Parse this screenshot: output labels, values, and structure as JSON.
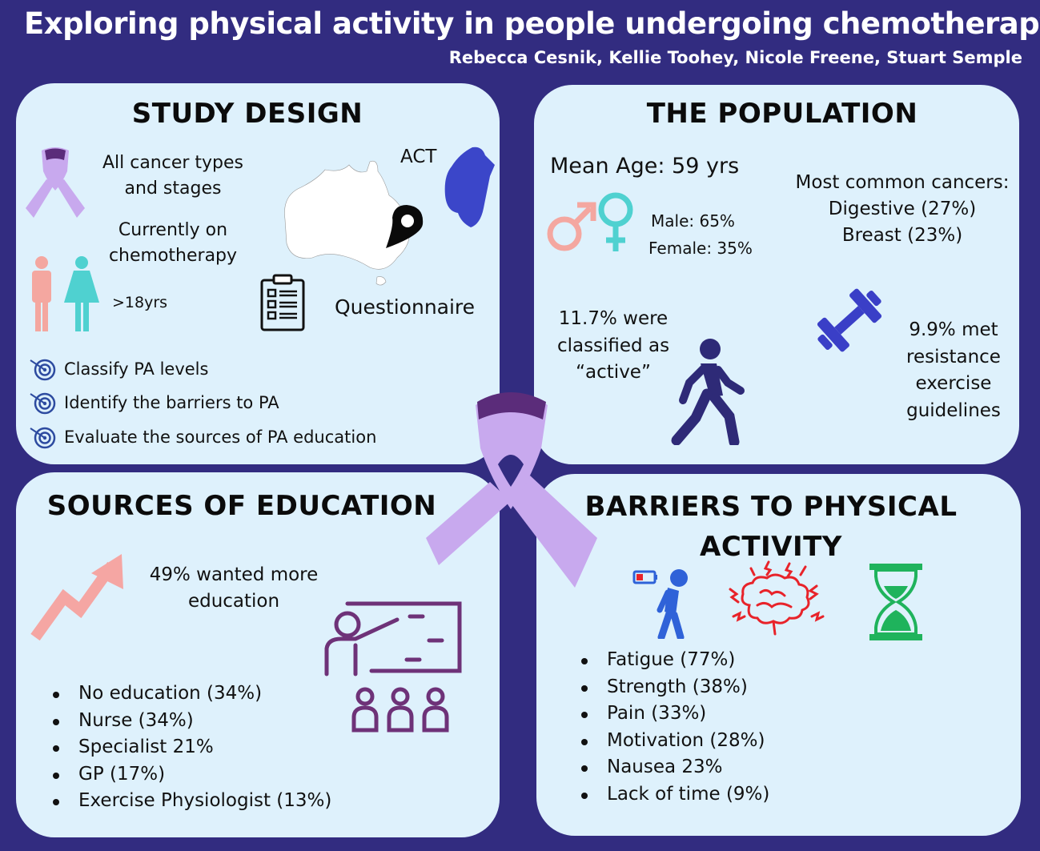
{
  "header": {
    "title": "Exploring physical activity in people undergoing chemotherapy",
    "authors": "Rebecca Cesnik, Kellie Toohey, Nicole Freene, Stuart Semple"
  },
  "study_design": {
    "title": "STUDY DESIGN",
    "cancer_types": "All cancer types and stages",
    "chemo": "Currently on chemotherapy",
    "age": ">18yrs",
    "region": "ACT",
    "method": "Questionnaire",
    "aims": [
      "Classify PA levels",
      "Identify the barriers to PA",
      "Evaluate the sources of PA education"
    ]
  },
  "population": {
    "title": "THE POPULATION",
    "mean_age": "Mean Age: 59 yrs",
    "male": "Male: 65%",
    "female": "Female: 35%",
    "cancers_heading": "Most common cancers:",
    "cancers": [
      "Digestive (27%)",
      "Breast (23%)"
    ],
    "active": "11.7% were classified as “active”",
    "resistance": "9.9% met resistance exercise guidelines"
  },
  "education": {
    "title": "SOURCES OF EDUCATION",
    "wanted": "49% wanted more education",
    "sources": [
      "No education (34%)",
      "Nurse (34%)",
      "Specialist 21%",
      "GP (17%)",
      "Exercise Physiologist (13%)"
    ]
  },
  "barriers": {
    "title": "BARRIERS TO PHYSICAL ACTIVITY",
    "items": [
      "Fatigue (77%)",
      "Strength (38%)",
      "Pain (33%)",
      "Motivation (28%)",
      "Nausea 23%",
      "Lack of time (9%)"
    ]
  },
  "colors": {
    "background": "#322c80",
    "panel": "#def1fc",
    "ribbon": "#c8a9ee",
    "ribbon_dark": "#5b2c7a",
    "male_pink": "#f4a7a0",
    "female_teal": "#4fd1d0",
    "dumbbell_blue": "#3a3fc7",
    "walker_navy": "#2e2a77",
    "brain_red": "#e8232a",
    "hourglass_green": "#1fb35c",
    "teacher_purple": "#6e3278",
    "arrow_pink": "#f5a6a3"
  },
  "icons": [
    "ribbon-icon",
    "australia-map-icon",
    "act-map-icon",
    "location-pin-icon",
    "person-icon",
    "clipboard-icon",
    "target-icon",
    "gender-icon",
    "walking-person-icon",
    "dumbbell-icon",
    "growth-arrow-icon",
    "teacher-icon",
    "fatigue-icon",
    "headache-brain-icon",
    "hourglass-icon"
  ]
}
